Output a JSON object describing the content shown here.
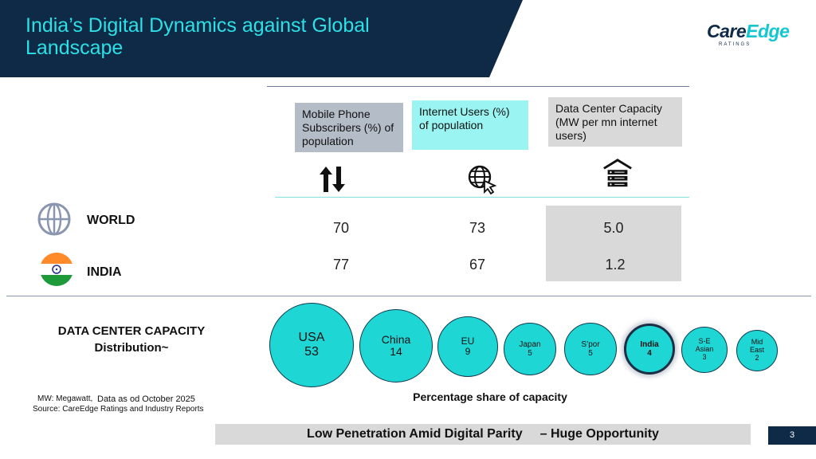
{
  "header": {
    "title_line1": "India’s Digital Dynamics against Global",
    "title_line2": "Landscape",
    "logo_text_main": "Care",
    "logo_text_accent": "Edge",
    "logo_sub": "RATINGS"
  },
  "columns": [
    {
      "label": "Mobile Phone Subscribers (%) of population",
      "icon": "arrows-up-down-icon"
    },
    {
      "label": "Internet Users (%) of population",
      "icon": "globe-cursor-icon"
    },
    {
      "label": "Data Center Capacity (MW per mn   internet users)",
      "icon": "server-house-icon"
    }
  ],
  "rows": [
    {
      "label": "WORLD",
      "icon": "globe-icon",
      "values": [
        "70",
        "73",
        "5.0"
      ]
    },
    {
      "label": "INDIA",
      "icon": "india-flag-icon",
      "values": [
        "77",
        "67",
        "1.2"
      ]
    }
  ],
  "distribution": {
    "title_line1": "DATA CENTER CAPACITY",
    "title_line2": "Distribution~",
    "share_label": "Percentage share of capacity",
    "bubbles": [
      {
        "name": "USA",
        "value": "53"
      },
      {
        "name": "China",
        "value": "14"
      },
      {
        "name": "EU",
        "value": "9"
      },
      {
        "name": "Japan",
        "value": "5"
      },
      {
        "name": "S’por",
        "value": "5"
      },
      {
        "name": "India",
        "value": "4"
      },
      {
        "name": "S-E Asian",
        "value": "3"
      },
      {
        "name": "Mid East",
        "value": "2"
      }
    ]
  },
  "notes": {
    "mw": "MW: Megawatt,",
    "asof": "Data as od October 2025",
    "source": "Source: CareEdge Ratings and Industry Reports"
  },
  "banner": {
    "left": "Low Penetration Amid Digital Parity",
    "right": "– Huge Opportunity"
  },
  "page_number": "3",
  "colors": {
    "navy": "#0e2a47",
    "teal": "#1ed6d4",
    "title_cyan": "#2ce0e6",
    "grey": "#d9d9d9"
  }
}
